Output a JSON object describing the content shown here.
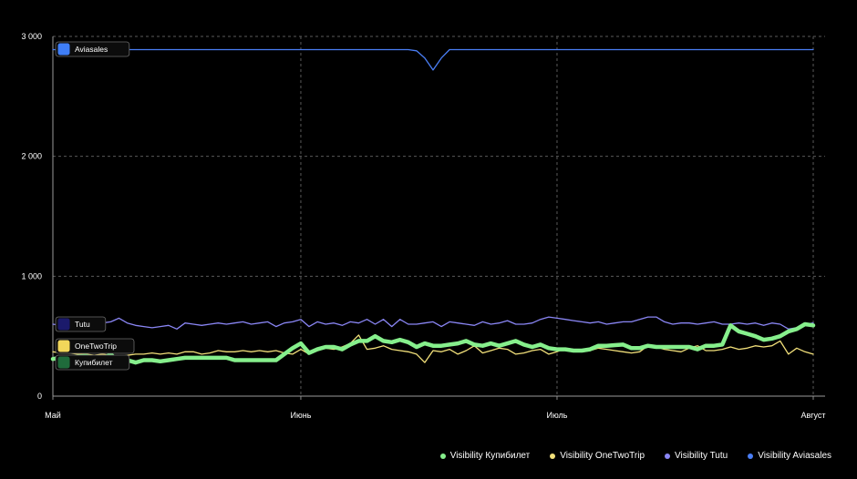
{
  "chart_data": {
    "type": "line",
    "title": "",
    "xlabel": "",
    "ylabel": "",
    "ylim": [
      0,
      3000
    ],
    "y_ticks": [
      {
        "value": 0,
        "label": "0"
      },
      {
        "value": 1000,
        "label": "1 000"
      },
      {
        "value": 2000,
        "label": "2 000"
      },
      {
        "value": 3000,
        "label": "3 000"
      }
    ],
    "x_ticks": [
      {
        "index": 0,
        "label": "Май"
      },
      {
        "index": 30,
        "label": "Июнь"
      },
      {
        "index": 61,
        "label": "Июль"
      },
      {
        "index": 92,
        "label": "Август"
      }
    ],
    "n_points": 93,
    "grid": true,
    "legend_position": "bottom-right",
    "series": [
      {
        "name": "Visibility Купибилет",
        "color": "#86ef8c",
        "badge": "Купибилет",
        "badge_icon": "kupibilet-logo-icon",
        "values": [
          310,
          320,
          320,
          330,
          335,
          320,
          310,
          350,
          280,
          300,
          280,
          300,
          300,
          290,
          300,
          310,
          320,
          320,
          320,
          320,
          320,
          320,
          300,
          300,
          300,
          300,
          300,
          300,
          350,
          400,
          440,
          360,
          390,
          410,
          410,
          390,
          430,
          460,
          460,
          500,
          460,
          450,
          470,
          450,
          410,
          440,
          420,
          420,
          430,
          440,
          460,
          430,
          420,
          440,
          420,
          440,
          460,
          430,
          410,
          430,
          400,
          390,
          390,
          380,
          380,
          390,
          420,
          420,
          425,
          430,
          400,
          400,
          420,
          410,
          410,
          410,
          410,
          410,
          390,
          420,
          420,
          430,
          590,
          540,
          520,
          500,
          470,
          480,
          500,
          540,
          560,
          600,
          590
        ]
      },
      {
        "name": "Visibility OneTwoTrip",
        "color": "#f2e07a",
        "badge": "OneTwoTrip",
        "badge_icon": "onetwotrip-logo-icon",
        "values": [
          370,
          360,
          360,
          350,
          350,
          340,
          350,
          340,
          330,
          340,
          350,
          350,
          360,
          350,
          360,
          350,
          370,
          370,
          350,
          360,
          380,
          370,
          370,
          380,
          370,
          380,
          370,
          380,
          360,
          350,
          390,
          350,
          380,
          400,
          390,
          410,
          440,
          510,
          390,
          400,
          420,
          390,
          380,
          370,
          350,
          280,
          380,
          370,
          390,
          350,
          380,
          420,
          360,
          380,
          400,
          390,
          350,
          360,
          380,
          390,
          350,
          370,
          400,
          390,
          370,
          380,
          400,
          390,
          380,
          370,
          360,
          370,
          420,
          410,
          390,
          380,
          370,
          400,
          420,
          380,
          380,
          390,
          410,
          390,
          400,
          420,
          410,
          420,
          460,
          350,
          400,
          370,
          350
        ]
      },
      {
        "name": "Visibility Tutu",
        "color": "#8a86f5",
        "badge": "Tutu",
        "badge_icon": "tutu-logo-icon",
        "values": [
          600,
          590,
          580,
          590,
          570,
          600,
          610,
          620,
          650,
          610,
          590,
          580,
          570,
          580,
          590,
          560,
          610,
          600,
          590,
          600,
          610,
          600,
          610,
          620,
          600,
          610,
          620,
          580,
          610,
          620,
          640,
          580,
          620,
          600,
          610,
          590,
          620,
          610,
          640,
          600,
          640,
          580,
          640,
          600,
          600,
          610,
          620,
          580,
          620,
          610,
          600,
          590,
          620,
          600,
          610,
          630,
          600,
          600,
          610,
          640,
          660,
          650,
          640,
          630,
          620,
          610,
          620,
          600,
          610,
          620,
          620,
          640,
          660,
          660,
          620,
          600,
          610,
          610,
          600,
          610,
          620,
          600,
          600,
          610,
          600,
          610,
          590,
          610,
          600,
          560,
          570,
          600,
          610
        ]
      },
      {
        "name": "Visibility Aviasales",
        "color": "#4a7ef5",
        "badge": "Aviasales",
        "badge_icon": "aviasales-logo-icon",
        "values": [
          2890,
          2890,
          2890,
          2890,
          2890,
          2890,
          2890,
          2890,
          2890,
          2890,
          2890,
          2890,
          2890,
          2890,
          2890,
          2890,
          2890,
          2890,
          2890,
          2890,
          2890,
          2890,
          2890,
          2890,
          2890,
          2890,
          2890,
          2890,
          2890,
          2890,
          2890,
          2890,
          2890,
          2890,
          2890,
          2890,
          2890,
          2890,
          2890,
          2890,
          2890,
          2890,
          2890,
          2890,
          2880,
          2820,
          2720,
          2820,
          2890,
          2890,
          2890,
          2890,
          2890,
          2890,
          2890,
          2890,
          2890,
          2890,
          2890,
          2890,
          2890,
          2890,
          2890,
          2890,
          2890,
          2890,
          2890,
          2890,
          2890,
          2890,
          2890,
          2890,
          2890,
          2890,
          2890,
          2890,
          2890,
          2890,
          2890,
          2890,
          2890,
          2890,
          2890,
          2890,
          2890,
          2890,
          2890,
          2890,
          2890,
          2890,
          2890,
          2890,
          2890
        ]
      }
    ]
  }
}
